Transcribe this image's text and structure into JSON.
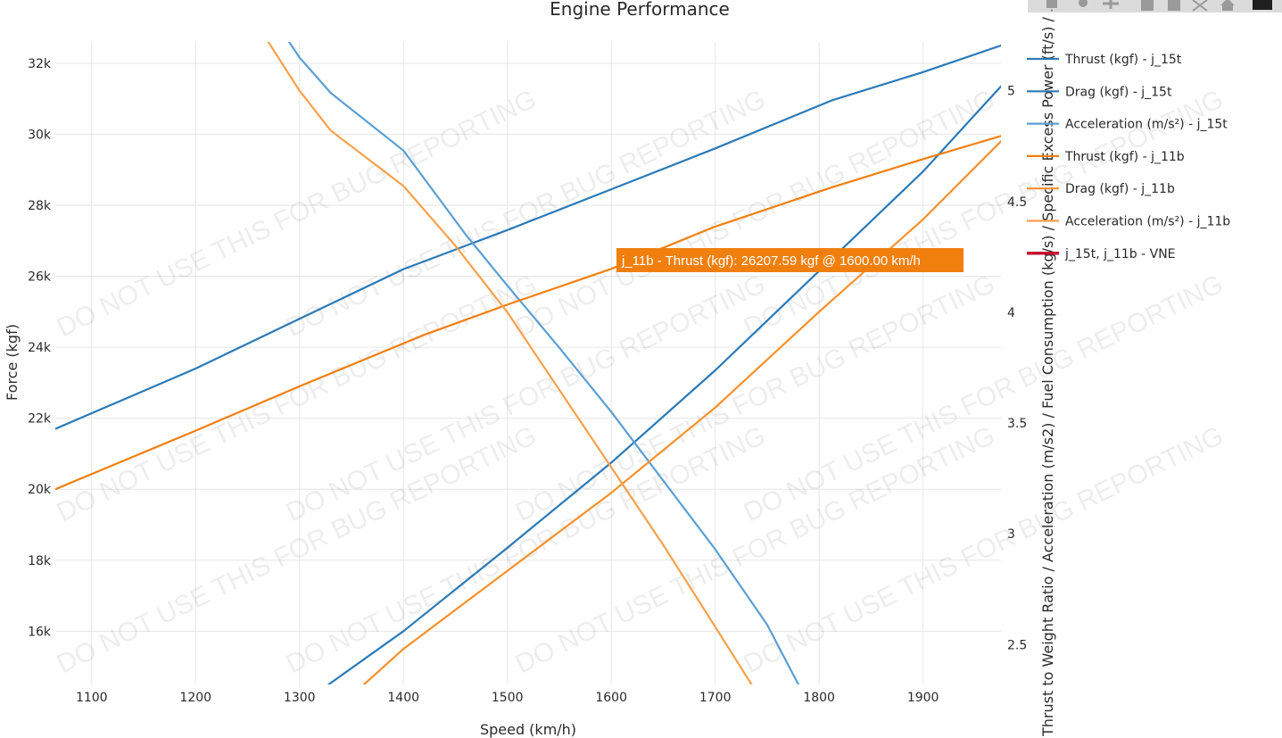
{
  "chart_data": {
    "type": "line",
    "title": "Engine Performance",
    "xlabel": "Speed (km/h)",
    "ylabel": "Force (kgf)",
    "y2label": "Thrust to Weight Ratio / Acceleration (m/s2) / Fuel Consumption (kg/s) / Specific Excess Power (ft/s) / ...",
    "xlim": [
      1065,
      1975
    ],
    "ylim": [
      14500,
      32600
    ],
    "y2lim": [
      2.32,
      5.22
    ],
    "x_ticks": [
      1100,
      1200,
      1300,
      1400,
      1500,
      1600,
      1700,
      1800,
      1900
    ],
    "x_tick_labels": [
      "1100",
      "1200",
      "1300",
      "1400",
      "1500",
      "1600",
      "1700",
      "1800",
      "1900"
    ],
    "y_ticks": [
      16000,
      18000,
      20000,
      22000,
      24000,
      26000,
      28000,
      30000,
      32000
    ],
    "y_tick_labels": [
      "16k",
      "18k",
      "20k",
      "22k",
      "24k",
      "26k",
      "28k",
      "30k",
      "32k"
    ],
    "y2_ticks": [
      2.5,
      3,
      3.5,
      4,
      4.5,
      5
    ],
    "y2_tick_labels": [
      "2.5",
      "3",
      "3.5",
      "4",
      "4.5",
      "5"
    ],
    "series": [
      {
        "name": "Thrust (kgf) - j_15t",
        "color": "#2a7ab8",
        "axis": "y",
        "x": [
          1065,
          1200,
          1300,
          1400,
          1500,
          1600,
          1700,
          1812,
          1900,
          1975
        ],
        "y": [
          21700,
          23400,
          24800,
          26200,
          27300,
          28450,
          29600,
          30950,
          31750,
          32500
        ]
      },
      {
        "name": "Drag (kgf) - j_15t",
        "color": "#2a7ab8",
        "axis": "y",
        "x": [
          1328,
          1400,
          1500,
          1600,
          1700,
          1800,
          1900,
          1975
        ],
        "y": [
          14500,
          16000,
          18350,
          20750,
          23350,
          26150,
          28950,
          31350
        ]
      },
      {
        "name": "Acceleration (m/s²) - j_15t",
        "color": "#5b9fd3",
        "axis": "y2",
        "x": [
          1290,
          1300,
          1330,
          1400,
          1460,
          1500,
          1550,
          1600,
          1650,
          1700,
          1750,
          1780
        ],
        "y": [
          5.22,
          5.15,
          4.99,
          4.73,
          4.35,
          4.12,
          3.84,
          3.55,
          3.24,
          2.93,
          2.59,
          2.32
        ]
      },
      {
        "name": "Thrust (kgf) - j_11b",
        "color": "#f07f0e",
        "axis": "y",
        "x": [
          1065,
          1200,
          1300,
          1420,
          1500,
          1600,
          1700,
          1812,
          1900,
          1975
        ],
        "y": [
          20000,
          21650,
          22900,
          24350,
          25200,
          26207.59,
          27400,
          28500,
          29300,
          29950
        ]
      },
      {
        "name": "Drag (kgf) - j_11b",
        "color": "#f7902a",
        "axis": "y",
        "x": [
          1362,
          1400,
          1500,
          1600,
          1700,
          1800,
          1900,
          1975
        ],
        "y": [
          14500,
          15500,
          17700,
          19900,
          22300,
          25000,
          27600,
          29800
        ]
      },
      {
        "name": "Acceleration (m/s²) - j_11b",
        "color": "#f8a14b",
        "axis": "y2",
        "x": [
          1270,
          1300,
          1330,
          1400,
          1450,
          1500,
          1550,
          1600,
          1650,
          1700,
          1735
        ],
        "y": [
          5.22,
          5.0,
          4.82,
          4.57,
          4.3,
          4.0,
          3.65,
          3.3,
          2.95,
          2.58,
          2.32
        ]
      },
      {
        "name": "j_15t, j_11b - VNE",
        "color": "#c8102e",
        "axis": "y",
        "x": [],
        "y": []
      }
    ],
    "tooltip": {
      "text": "j_11b - Thrust (kgf): 26207.59 kgf @ 1600.00 km/h",
      "color": "#f07f0e",
      "x": 1600,
      "y": 26207.59
    },
    "watermark": "DO NOT USE THIS FOR BUG REPORTING",
    "grid": true,
    "legend_position": "right"
  }
}
